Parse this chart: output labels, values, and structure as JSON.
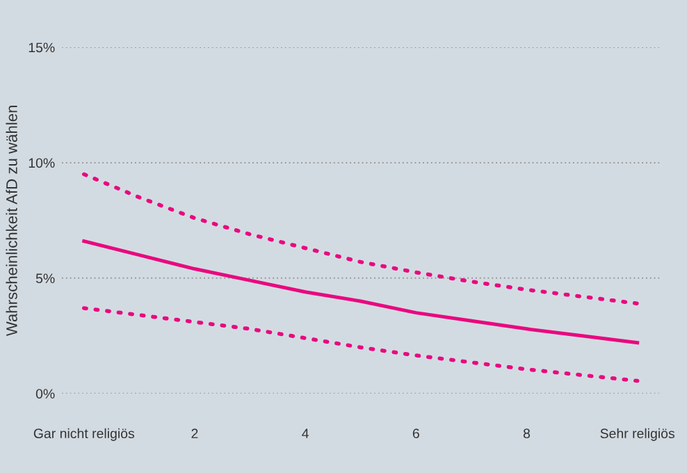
{
  "chart_data": {
    "type": "line",
    "ylabel": "Wahrscheinlichkeit AfD zu wählen",
    "x": [
      0,
      1,
      2,
      3,
      4,
      5,
      6,
      7,
      8,
      9,
      10
    ],
    "xlim": [
      -0.4,
      10.4
    ],
    "xticks": [
      {
        "value": 0,
        "label": "Gar nicht religiös"
      },
      2,
      4,
      6,
      8,
      {
        "value": 10,
        "label": "Sehr religiös"
      }
    ],
    "ylim": [
      0,
      15
    ],
    "yticks": [
      {
        "value": 0,
        "label": "0%"
      },
      {
        "value": 5,
        "label": "5%"
      },
      {
        "value": 10,
        "label": "10%"
      },
      {
        "value": 15,
        "label": "15%"
      }
    ],
    "grid": "y",
    "marker": "none",
    "series": [
      {
        "color": "#e8097f",
        "line_style": "dotted",
        "values": [
          9.5,
          8.5,
          7.6,
          6.9,
          6.3,
          5.7,
          5.25,
          4.85,
          4.5,
          4.2,
          3.9
        ]
      },
      {
        "color": "#e8097f",
        "line_style": "solid",
        "values": [
          6.6,
          6.0,
          5.4,
          4.9,
          4.4,
          4.0,
          3.5,
          3.15,
          2.8,
          2.5,
          2.2
        ]
      },
      {
        "color": "#e8097f",
        "line_style": "dotted",
        "values": [
          3.7,
          3.4,
          3.1,
          2.8,
          2.4,
          2.0,
          1.65,
          1.35,
          1.05,
          0.8,
          0.55
        ]
      }
    ]
  }
}
